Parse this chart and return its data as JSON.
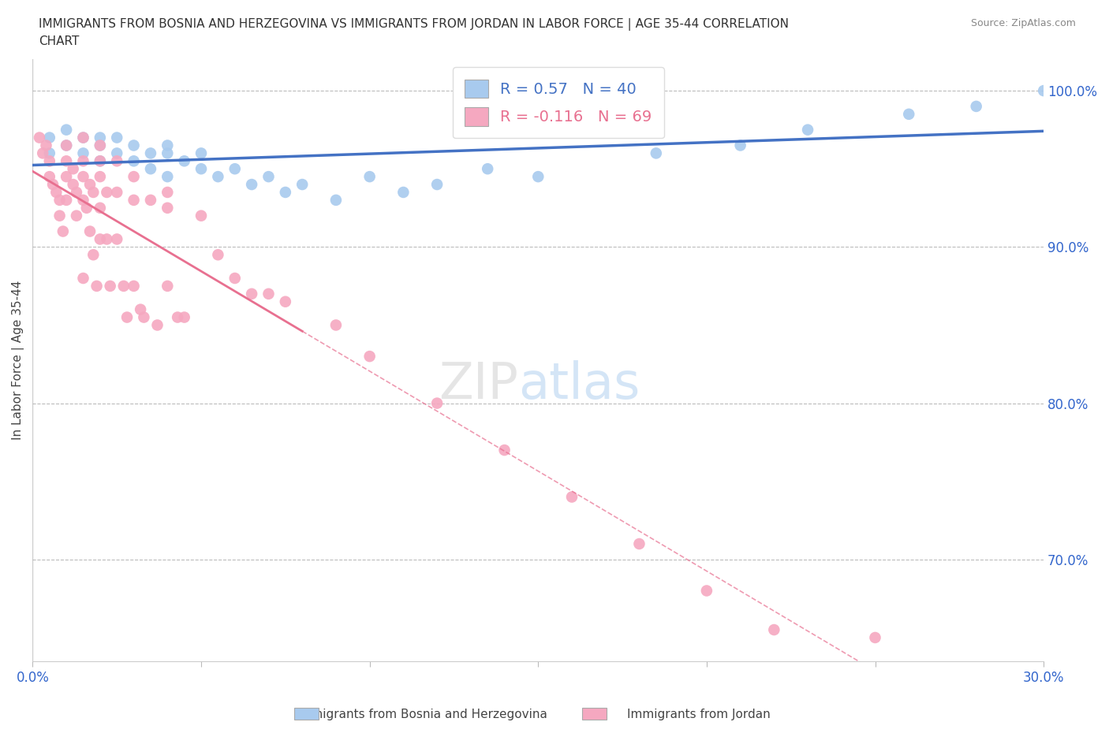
{
  "title": "IMMIGRANTS FROM BOSNIA AND HERZEGOVINA VS IMMIGRANTS FROM JORDAN IN LABOR FORCE | AGE 35-44 CORRELATION\nCHART",
  "source_text": "Source: ZipAtlas.com",
  "ylabel": "In Labor Force | Age 35-44",
  "xlim": [
    0.0,
    0.3
  ],
  "ylim": [
    0.635,
    1.02
  ],
  "xticks": [
    0.0,
    0.05,
    0.1,
    0.15,
    0.2,
    0.25,
    0.3
  ],
  "yticks": [
    0.7,
    0.8,
    0.9,
    1.0
  ],
  "ytick_labels": [
    "70.0%",
    "80.0%",
    "90.0%",
    "100.0%"
  ],
  "R_bosnia": 0.57,
  "N_bosnia": 40,
  "R_jordan": -0.116,
  "N_jordan": 69,
  "color_bosnia": "#A8CAEE",
  "color_jordan": "#F5A8C0",
  "line_color_bosnia": "#4472C4",
  "line_color_jordan": "#E87090",
  "bosnia_x": [
    0.005,
    0.005,
    0.01,
    0.01,
    0.015,
    0.015,
    0.02,
    0.02,
    0.02,
    0.025,
    0.025,
    0.03,
    0.03,
    0.035,
    0.035,
    0.04,
    0.04,
    0.04,
    0.045,
    0.05,
    0.05,
    0.055,
    0.06,
    0.065,
    0.07,
    0.075,
    0.08,
    0.09,
    0.1,
    0.11,
    0.12,
    0.135,
    0.15,
    0.165,
    0.185,
    0.21,
    0.23,
    0.26,
    0.28,
    0.3
  ],
  "bosnia_y": [
    0.97,
    0.96,
    0.975,
    0.965,
    0.97,
    0.96,
    0.97,
    0.965,
    0.955,
    0.97,
    0.96,
    0.965,
    0.955,
    0.96,
    0.95,
    0.965,
    0.96,
    0.945,
    0.955,
    0.96,
    0.95,
    0.945,
    0.95,
    0.94,
    0.945,
    0.935,
    0.94,
    0.93,
    0.945,
    0.935,
    0.94,
    0.95,
    0.945,
    0.975,
    0.96,
    0.965,
    0.975,
    0.985,
    0.99,
    1.0
  ],
  "jordan_x": [
    0.002,
    0.003,
    0.004,
    0.005,
    0.005,
    0.006,
    0.007,
    0.008,
    0.008,
    0.009,
    0.01,
    0.01,
    0.01,
    0.01,
    0.012,
    0.012,
    0.013,
    0.013,
    0.015,
    0.015,
    0.015,
    0.015,
    0.015,
    0.016,
    0.017,
    0.017,
    0.018,
    0.018,
    0.019,
    0.02,
    0.02,
    0.02,
    0.02,
    0.02,
    0.022,
    0.022,
    0.023,
    0.025,
    0.025,
    0.025,
    0.027,
    0.028,
    0.03,
    0.03,
    0.03,
    0.032,
    0.033,
    0.035,
    0.037,
    0.04,
    0.04,
    0.04,
    0.043,
    0.045,
    0.05,
    0.055,
    0.06,
    0.065,
    0.07,
    0.075,
    0.09,
    0.1,
    0.12,
    0.14,
    0.16,
    0.18,
    0.2,
    0.22,
    0.25
  ],
  "jordan_y": [
    0.97,
    0.96,
    0.965,
    0.955,
    0.945,
    0.94,
    0.935,
    0.93,
    0.92,
    0.91,
    0.965,
    0.955,
    0.945,
    0.93,
    0.95,
    0.94,
    0.935,
    0.92,
    0.97,
    0.955,
    0.945,
    0.93,
    0.88,
    0.925,
    0.94,
    0.91,
    0.935,
    0.895,
    0.875,
    0.965,
    0.955,
    0.945,
    0.925,
    0.905,
    0.935,
    0.905,
    0.875,
    0.955,
    0.935,
    0.905,
    0.875,
    0.855,
    0.945,
    0.93,
    0.875,
    0.86,
    0.855,
    0.93,
    0.85,
    0.935,
    0.925,
    0.875,
    0.855,
    0.855,
    0.92,
    0.895,
    0.88,
    0.87,
    0.87,
    0.865,
    0.85,
    0.83,
    0.8,
    0.77,
    0.74,
    0.71,
    0.68,
    0.655,
    0.65
  ]
}
